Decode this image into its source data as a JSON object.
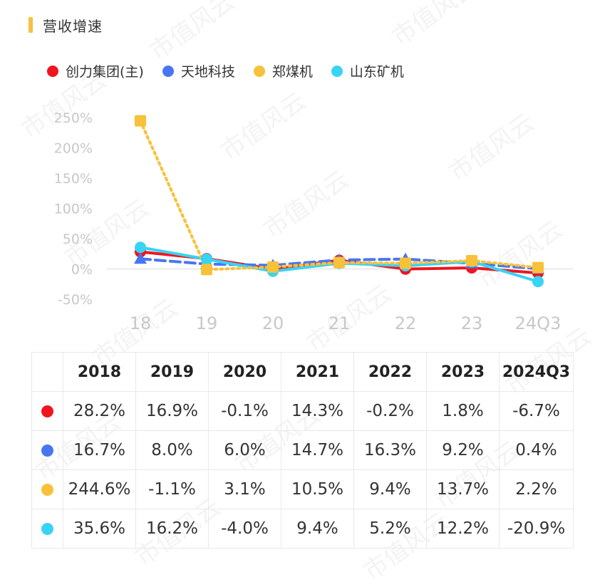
{
  "header": {
    "title": "营收增速"
  },
  "watermark_text": "市值风云",
  "legend": [
    {
      "label": "创力集团(主)",
      "color": "#f0141e"
    },
    {
      "label": "天地科技",
      "color": "#4876f2"
    },
    {
      "label": "郑煤机",
      "color": "#f8c13a"
    },
    {
      "label": "山东矿机",
      "color": "#37d4f5"
    }
  ],
  "chart_data": {
    "type": "line",
    "title": "营收增速",
    "categories": [
      "18",
      "19",
      "20",
      "21",
      "22",
      "23",
      "24Q3"
    ],
    "y_ticks": [
      "250%",
      "200%",
      "150%",
      "100%",
      "50%",
      "0%",
      "-50%"
    ],
    "ylim": [
      -50,
      250
    ],
    "series": [
      {
        "name": "创力集团(主)",
        "color": "#f0141e",
        "style": "solid",
        "marker": "circle",
        "values": [
          28.2,
          16.9,
          -0.1,
          14.3,
          -0.2,
          1.8,
          -6.7
        ]
      },
      {
        "name": "天地科技",
        "color": "#4876f2",
        "style": "dashed",
        "marker": "triangle",
        "values": [
          16.7,
          8.0,
          6.0,
          14.7,
          16.3,
          9.2,
          0.4
        ]
      },
      {
        "name": "郑煤机",
        "color": "#f8c13a",
        "style": "dotted",
        "marker": "square",
        "values": [
          244.6,
          -1.1,
          3.1,
          10.5,
          9.4,
          13.7,
          2.2
        ]
      },
      {
        "name": "山东矿机",
        "color": "#37d4f5",
        "style": "solid",
        "marker": "circle",
        "values": [
          35.6,
          16.2,
          -4.0,
          9.4,
          5.2,
          12.2,
          -20.9
        ]
      }
    ]
  },
  "table": {
    "headers": [
      "2018",
      "2019",
      "2020",
      "2021",
      "2022",
      "2023",
      "2024Q3"
    ],
    "rows": [
      {
        "color": "#f0141e",
        "cells": [
          "28.2%",
          "16.9%",
          "-0.1%",
          "14.3%",
          "-0.2%",
          "1.8%",
          "-6.7%"
        ]
      },
      {
        "color": "#4876f2",
        "cells": [
          "16.7%",
          "8.0%",
          "6.0%",
          "14.7%",
          "16.3%",
          "9.2%",
          "0.4%"
        ]
      },
      {
        "color": "#f8c13a",
        "cells": [
          "244.6%",
          "-1.1%",
          "3.1%",
          "10.5%",
          "9.4%",
          "13.7%",
          "2.2%"
        ]
      },
      {
        "color": "#37d4f5",
        "cells": [
          "35.6%",
          "16.2%",
          "-4.0%",
          "9.4%",
          "5.2%",
          "12.2%",
          "-20.9%"
        ]
      }
    ]
  }
}
